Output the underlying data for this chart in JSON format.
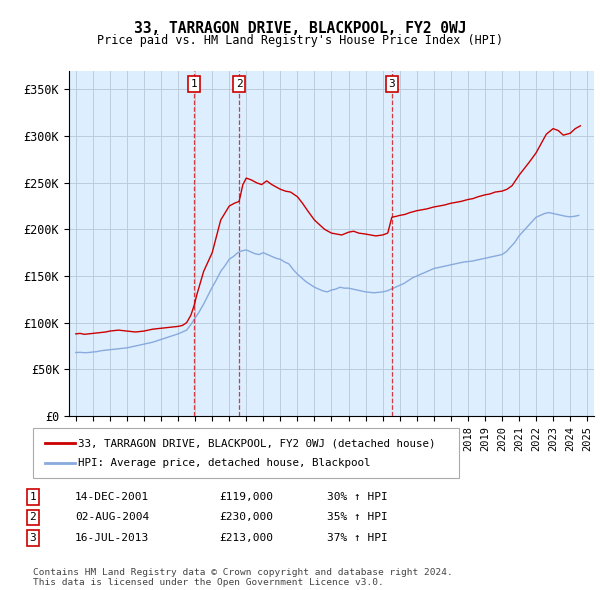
{
  "title": "33, TARRAGON DRIVE, BLACKPOOL, FY2 0WJ",
  "subtitle": "Price paid vs. HM Land Registry's House Price Index (HPI)",
  "ylabel_ticks": [
    "£0",
    "£50K",
    "£100K",
    "£150K",
    "£200K",
    "£250K",
    "£300K",
    "£350K"
  ],
  "ylim": [
    0,
    370000
  ],
  "xlim_start": 1994.6,
  "xlim_end": 2025.4,
  "transactions": [
    {
      "num": 1,
      "date_str": "14-DEC-2001",
      "price": 119000,
      "hpi_pct": "30%",
      "x_year": 2001.95
    },
    {
      "num": 2,
      "date_str": "02-AUG-2004",
      "price": 230000,
      "hpi_pct": "35%",
      "x_year": 2004.58
    },
    {
      "num": 3,
      "date_str": "16-JUL-2013",
      "price": 213000,
      "hpi_pct": "37%",
      "x_year": 2013.54
    }
  ],
  "red_line_color": "#cc0000",
  "blue_line_color": "#88aadd",
  "grid_color": "#bbccdd",
  "bg_color": "#ddeeff",
  "legend_label_red": "33, TARRAGON DRIVE, BLACKPOOL, FY2 0WJ (detached house)",
  "legend_label_blue": "HPI: Average price, detached house, Blackpool",
  "footer_text": "Contains HM Land Registry data © Crown copyright and database right 2024.\nThis data is licensed under the Open Government Licence v3.0.",
  "red_series_x": [
    1995.0,
    1995.25,
    1995.5,
    1995.75,
    1996.0,
    1996.25,
    1996.5,
    1996.75,
    1997.0,
    1997.25,
    1997.5,
    1997.75,
    1998.0,
    1998.25,
    1998.5,
    1998.75,
    1999.0,
    1999.25,
    1999.5,
    1999.75,
    2000.0,
    2000.25,
    2000.5,
    2000.75,
    2001.0,
    2001.25,
    2001.5,
    2001.75,
    2001.95,
    2002.1,
    2002.5,
    2003.0,
    2003.5,
    2004.0,
    2004.3,
    2004.58,
    2004.8,
    2005.0,
    2005.3,
    2005.6,
    2005.9,
    2006.2,
    2006.5,
    2006.8,
    2007.0,
    2007.3,
    2007.6,
    2008.0,
    2008.3,
    2008.6,
    2009.0,
    2009.3,
    2009.6,
    2010.0,
    2010.3,
    2010.6,
    2011.0,
    2011.3,
    2011.6,
    2012.0,
    2012.3,
    2012.6,
    2013.0,
    2013.3,
    2013.54,
    2013.8,
    2014.0,
    2014.3,
    2014.6,
    2015.0,
    2015.3,
    2015.6,
    2016.0,
    2016.3,
    2016.6,
    2017.0,
    2017.3,
    2017.6,
    2018.0,
    2018.3,
    2018.6,
    2019.0,
    2019.3,
    2019.6,
    2020.0,
    2020.3,
    2020.6,
    2021.0,
    2021.3,
    2021.6,
    2022.0,
    2022.3,
    2022.6,
    2023.0,
    2023.3,
    2023.6,
    2024.0,
    2024.3,
    2024.6
  ],
  "red_series_y": [
    88000,
    88500,
    87500,
    88000,
    88500,
    89000,
    89500,
    90000,
    91000,
    91500,
    92000,
    91500,
    91000,
    90500,
    90000,
    90500,
    91000,
    92000,
    93000,
    93500,
    94000,
    94500,
    95000,
    95500,
    96000,
    97000,
    100000,
    108000,
    119000,
    130000,
    155000,
    175000,
    210000,
    225000,
    228000,
    230000,
    248000,
    255000,
    253000,
    250000,
    248000,
    252000,
    248000,
    245000,
    243000,
    241000,
    240000,
    235000,
    228000,
    220000,
    210000,
    205000,
    200000,
    196000,
    195000,
    194000,
    197000,
    198000,
    196000,
    195000,
    194000,
    193000,
    194000,
    196000,
    213000,
    214000,
    215000,
    216000,
    218000,
    220000,
    221000,
    222000,
    224000,
    225000,
    226000,
    228000,
    229000,
    230000,
    232000,
    233000,
    235000,
    237000,
    238000,
    240000,
    241000,
    243000,
    247000,
    258000,
    265000,
    272000,
    282000,
    292000,
    302000,
    308000,
    306000,
    301000,
    303000,
    308000,
    311000
  ],
  "blue_series_x": [
    1995.0,
    1995.25,
    1995.5,
    1995.75,
    1996.0,
    1996.25,
    1996.5,
    1996.75,
    1997.0,
    1997.25,
    1997.5,
    1997.75,
    1998.0,
    1998.25,
    1998.5,
    1998.75,
    1999.0,
    1999.25,
    1999.5,
    1999.75,
    2000.0,
    2000.25,
    2000.5,
    2000.75,
    2001.0,
    2001.25,
    2001.5,
    2001.75,
    2002.0,
    2002.25,
    2002.5,
    2002.75,
    2003.0,
    2003.25,
    2003.5,
    2003.75,
    2004.0,
    2004.25,
    2004.5,
    2004.75,
    2005.0,
    2005.25,
    2005.5,
    2005.75,
    2006.0,
    2006.25,
    2006.5,
    2006.75,
    2007.0,
    2007.25,
    2007.5,
    2007.75,
    2008.0,
    2008.25,
    2008.5,
    2008.75,
    2009.0,
    2009.25,
    2009.5,
    2009.75,
    2010.0,
    2010.25,
    2010.5,
    2010.75,
    2011.0,
    2011.25,
    2011.5,
    2011.75,
    2012.0,
    2012.25,
    2012.5,
    2012.75,
    2013.0,
    2013.25,
    2013.5,
    2013.75,
    2014.0,
    2014.25,
    2014.5,
    2014.75,
    2015.0,
    2015.25,
    2015.5,
    2015.75,
    2016.0,
    2016.25,
    2016.5,
    2016.75,
    2017.0,
    2017.25,
    2017.5,
    2017.75,
    2018.0,
    2018.25,
    2018.5,
    2018.75,
    2019.0,
    2019.25,
    2019.5,
    2019.75,
    2020.0,
    2020.25,
    2020.5,
    2020.75,
    2021.0,
    2021.25,
    2021.5,
    2021.75,
    2022.0,
    2022.25,
    2022.5,
    2022.75,
    2023.0,
    2023.25,
    2023.5,
    2023.75,
    2024.0,
    2024.25,
    2024.5
  ],
  "blue_series_y": [
    68000,
    68200,
    67800,
    68000,
    68500,
    69000,
    70000,
    70500,
    71000,
    71500,
    72000,
    72500,
    73000,
    74000,
    75000,
    76000,
    77000,
    78000,
    79000,
    80500,
    82000,
    83500,
    85000,
    86500,
    88000,
    90000,
    92000,
    98000,
    105000,
    112000,
    120000,
    129000,
    138000,
    146000,
    155000,
    161000,
    168000,
    171000,
    175000,
    177000,
    178000,
    176000,
    174000,
    173000,
    175000,
    173000,
    171000,
    169000,
    168000,
    165000,
    163000,
    157000,
    152000,
    148000,
    144000,
    141000,
    138000,
    136000,
    134000,
    133000,
    135000,
    136000,
    138000,
    137000,
    137000,
    136000,
    135000,
    134000,
    133000,
    132500,
    132000,
    132500,
    133000,
    134000,
    136000,
    138000,
    140000,
    142000,
    145000,
    148000,
    150000,
    152000,
    154000,
    156000,
    158000,
    159000,
    160000,
    161000,
    162000,
    163000,
    164000,
    165000,
    165500,
    166000,
    167000,
    168000,
    169000,
    170000,
    171000,
    172000,
    173000,
    176000,
    181000,
    186000,
    193000,
    198000,
    203000,
    208000,
    213000,
    215000,
    217000,
    218000,
    217000,
    216000,
    215000,
    214000,
    213500,
    214000,
    215000
  ]
}
